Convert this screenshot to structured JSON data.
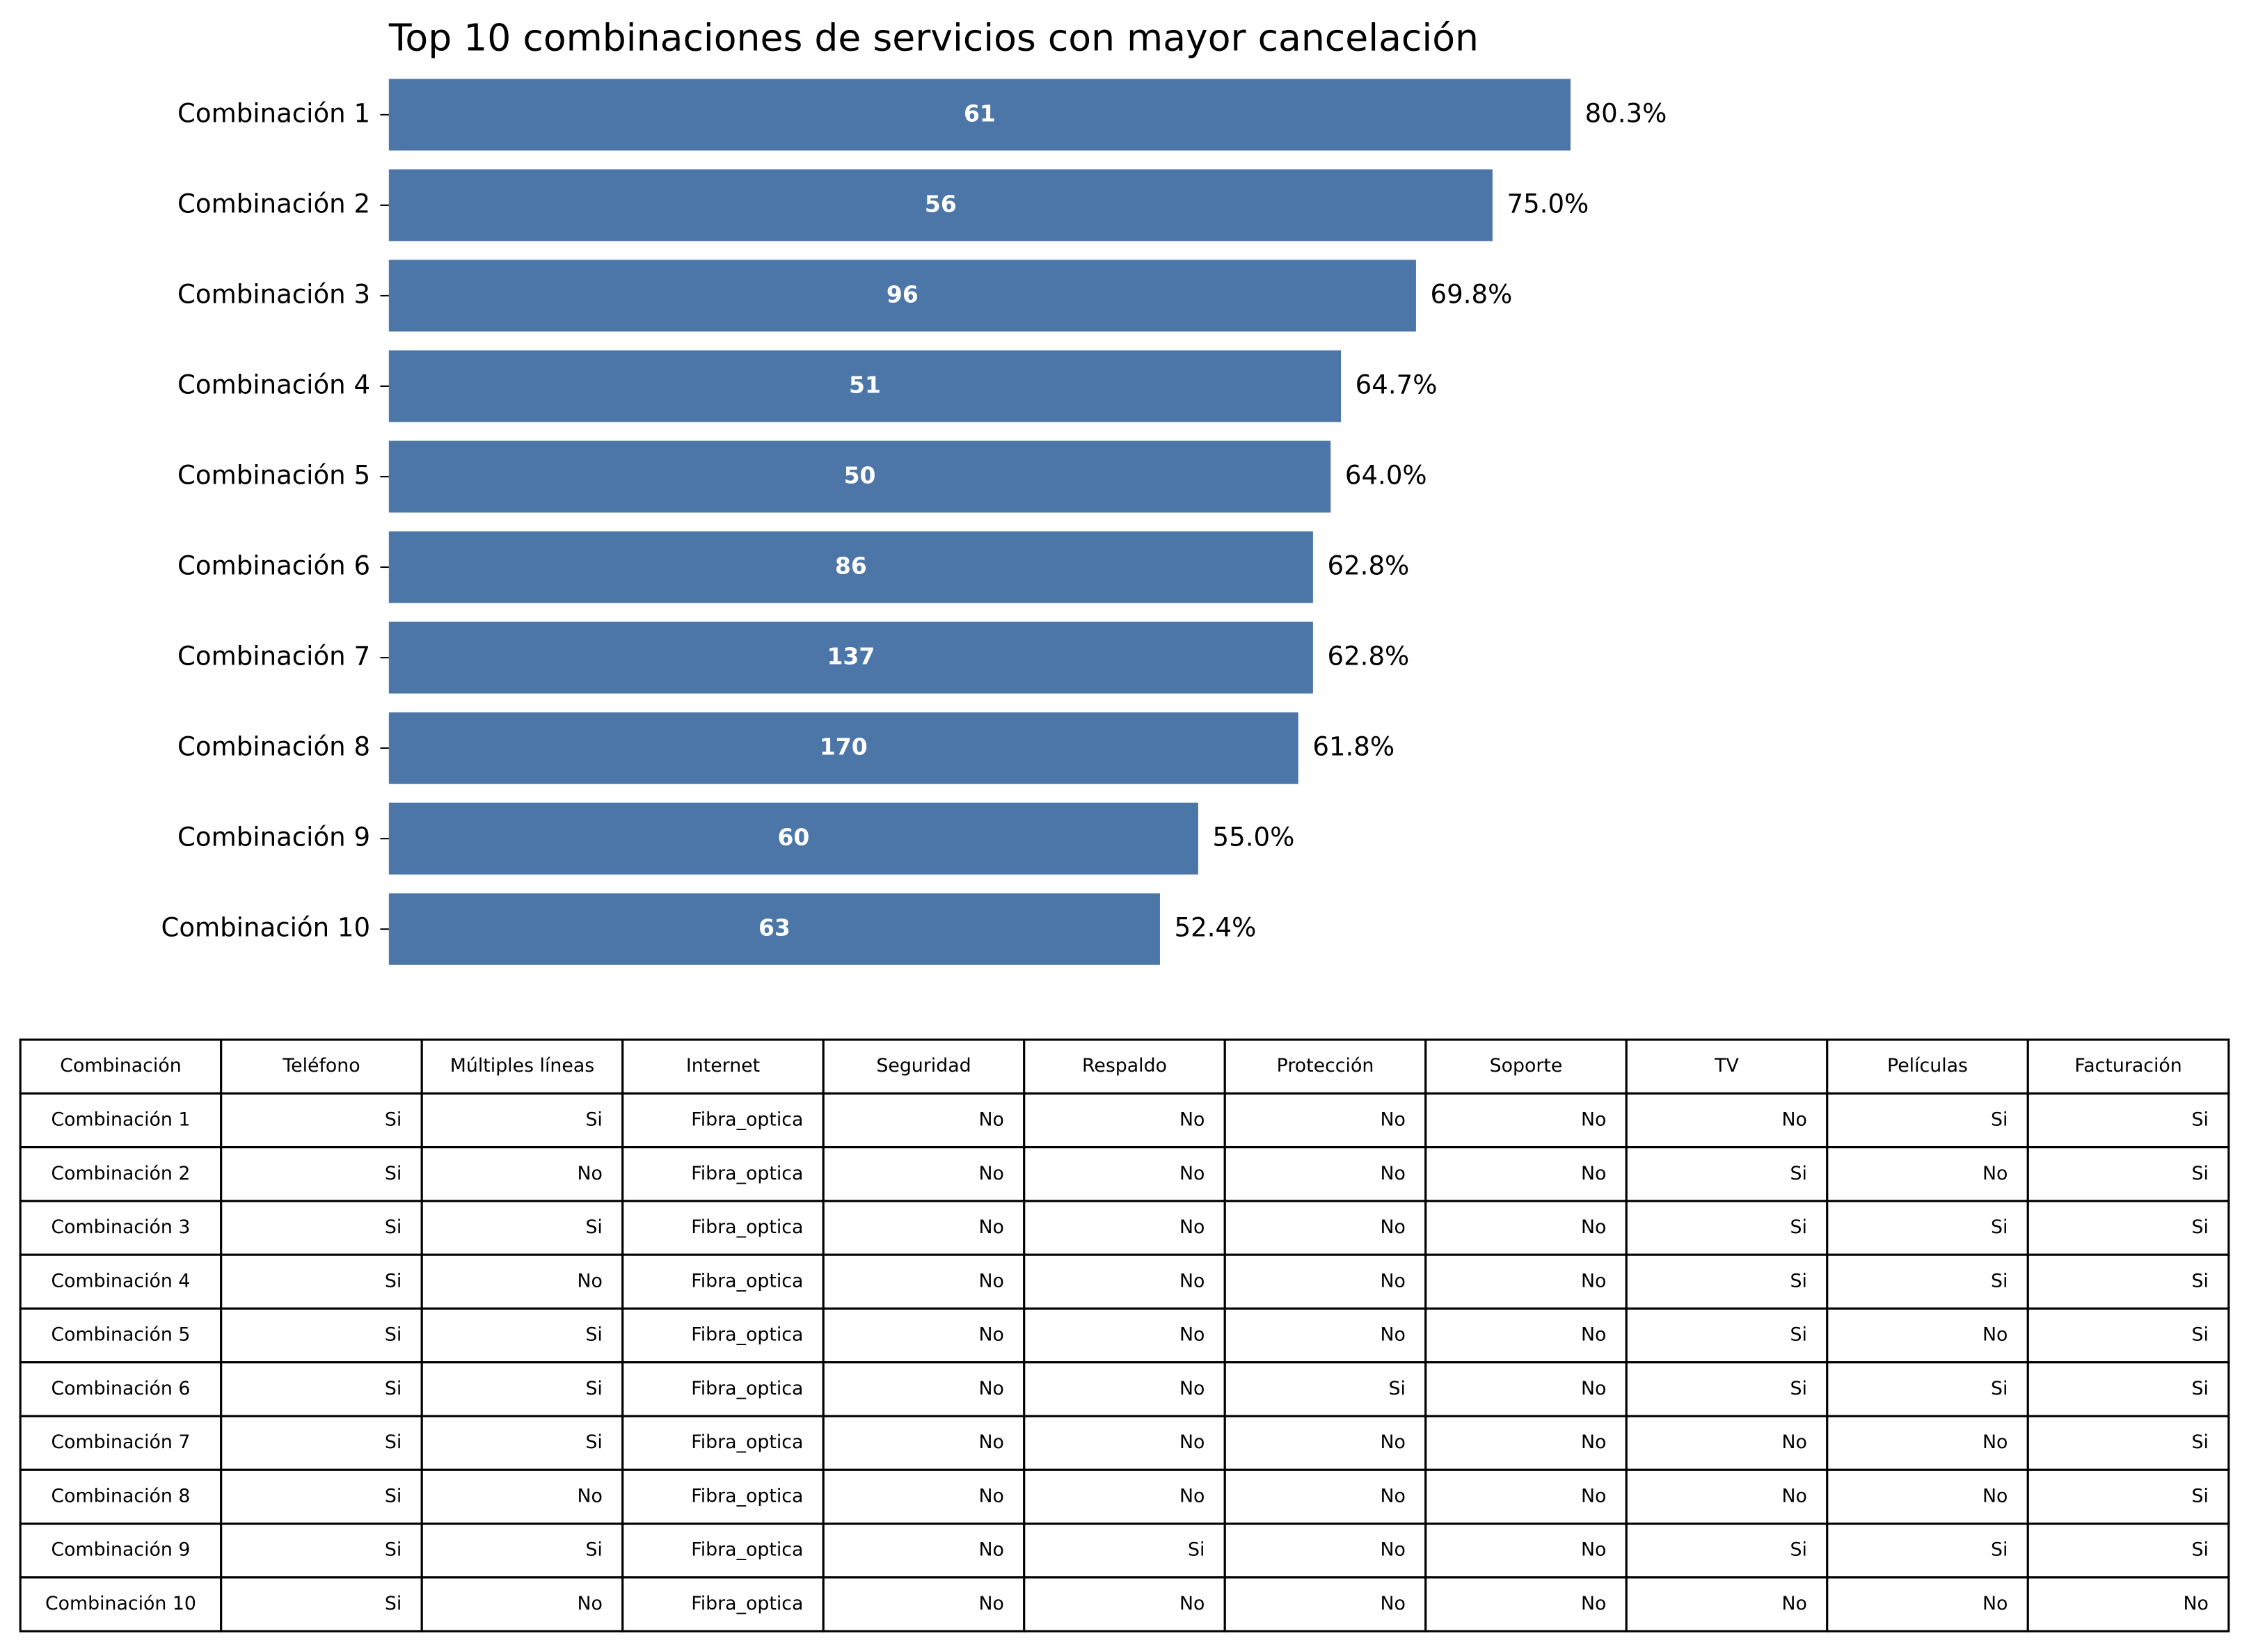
{
  "chart_data": {
    "type": "bar",
    "orientation": "horizontal",
    "title": "Top 10 combinaciones de servicios con mayor cancelación",
    "categories": [
      "Combinación 1",
      "Combinación 2",
      "Combinación 3",
      "Combinación 4",
      "Combinación 5",
      "Combinación 6",
      "Combinación 7",
      "Combinación 8",
      "Combinación 9",
      "Combinación 10"
    ],
    "values": [
      80.3,
      75.0,
      69.8,
      64.7,
      64.0,
      62.8,
      62.8,
      61.8,
      55.0,
      52.4
    ],
    "value_labels": [
      "80.3%",
      "75.0%",
      "69.8%",
      "64.7%",
      "64.0%",
      "62.8%",
      "62.8%",
      "61.8%",
      "55.0%",
      "52.4%"
    ],
    "counts": [
      61,
      56,
      96,
      51,
      50,
      86,
      137,
      170,
      60,
      63
    ],
    "color": "#4c76a8"
  },
  "table": {
    "columns": [
      "Combinación",
      "Teléfono",
      "Múltiples líneas",
      "Internet",
      "Seguridad",
      "Respaldo",
      "Protección",
      "Soporte",
      "TV",
      "Películas",
      "Facturación"
    ],
    "rows": [
      [
        "Combinación 1",
        "Si",
        "Si",
        "Fibra_optica",
        "No",
        "No",
        "No",
        "No",
        "No",
        "Si",
        "Si"
      ],
      [
        "Combinación 2",
        "Si",
        "No",
        "Fibra_optica",
        "No",
        "No",
        "No",
        "No",
        "Si",
        "No",
        "Si"
      ],
      [
        "Combinación 3",
        "Si",
        "Si",
        "Fibra_optica",
        "No",
        "No",
        "No",
        "No",
        "Si",
        "Si",
        "Si"
      ],
      [
        "Combinación 4",
        "Si",
        "No",
        "Fibra_optica",
        "No",
        "No",
        "No",
        "No",
        "Si",
        "Si",
        "Si"
      ],
      [
        "Combinación 5",
        "Si",
        "Si",
        "Fibra_optica",
        "No",
        "No",
        "No",
        "No",
        "Si",
        "No",
        "Si"
      ],
      [
        "Combinación 6",
        "Si",
        "Si",
        "Fibra_optica",
        "No",
        "No",
        "Si",
        "No",
        "Si",
        "Si",
        "Si"
      ],
      [
        "Combinación 7",
        "Si",
        "Si",
        "Fibra_optica",
        "No",
        "No",
        "No",
        "No",
        "No",
        "No",
        "Si"
      ],
      [
        "Combinación 8",
        "Si",
        "No",
        "Fibra_optica",
        "No",
        "No",
        "No",
        "No",
        "No",
        "No",
        "Si"
      ],
      [
        "Combinación 9",
        "Si",
        "Si",
        "Fibra_optica",
        "No",
        "Si",
        "No",
        "No",
        "Si",
        "Si",
        "Si"
      ],
      [
        "Combinación 10",
        "Si",
        "No",
        "Fibra_optica",
        "No",
        "No",
        "No",
        "No",
        "No",
        "No",
        "No"
      ]
    ]
  }
}
